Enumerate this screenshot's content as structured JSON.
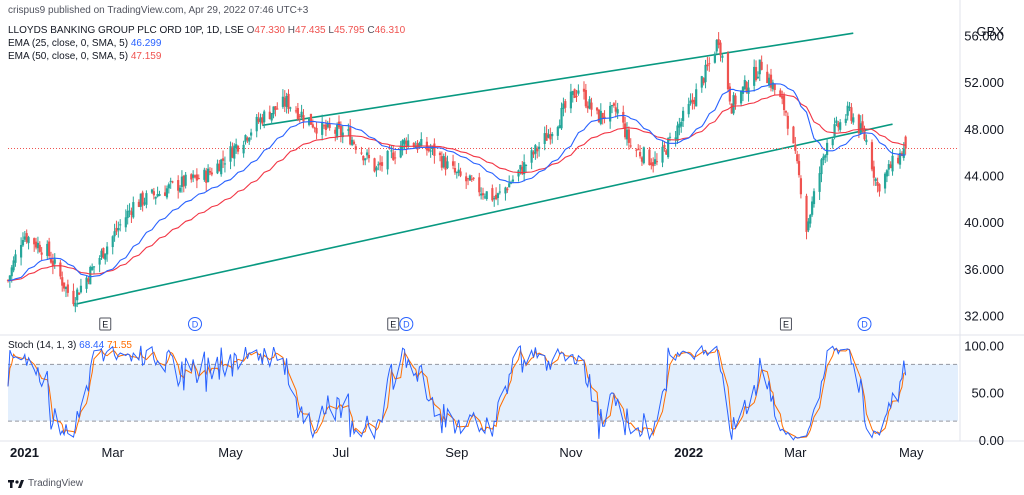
{
  "publisher_line": "crispus9 published on TradingView.com, Apr 29, 2022 07:46 UTC+3",
  "currency": "GBX",
  "legend": {
    "symbol": "LLOYDS BANKING GROUP PLC ORD 10P, 1D, LSE",
    "ohlc": {
      "O": "47.330",
      "H": "47.435",
      "L": "45.795",
      "C": "46.310"
    },
    "ema25": {
      "label": "EMA (25, close, 0, SMA, 5)",
      "value": "46.299"
    },
    "ema50": {
      "label": "EMA (50, close, 0, SMA, 5)",
      "value": "47.159"
    },
    "stoch": {
      "label": "Stoch (14, 1, 3)",
      "k": "68.44",
      "d": "71.55"
    }
  },
  "brand": "TradingView",
  "colors": {
    "up": "#26a69a",
    "down": "#ef5350",
    "ema25": "#2962ff",
    "ema50": "#f23645",
    "trend": "#089981",
    "stoch_k": "#2962ff",
    "stoch_d": "#ff6d00",
    "band": "#e3effd"
  },
  "chart_data": [
    {
      "type": "candlestick",
      "price_range": [
        30.5,
        57.5
      ],
      "y_ticks": [
        "56.000",
        "52.000",
        "48.000",
        "44.000",
        "40.000",
        "36.000",
        "32.000"
      ],
      "x_ticks": [
        "2021",
        "Mar",
        "May",
        "Jul",
        "Sep",
        "Nov",
        "2022",
        "Mar",
        "May"
      ],
      "last_price_line": 46.31,
      "anchors": [
        {
          "date": "2021-01-04",
          "close": 35.0
        },
        {
          "date": "2021-01-12",
          "close": 39.0
        },
        {
          "date": "2021-01-25",
          "close": 37.5
        },
        {
          "date": "2021-02-05",
          "close": 34.0
        },
        {
          "date": "2021-02-08",
          "close": 33.5
        },
        {
          "date": "2021-02-22",
          "close": 37.0
        },
        {
          "date": "2021-03-12",
          "close": 41.5
        },
        {
          "date": "2021-04-01",
          "close": 43.0
        },
        {
          "date": "2021-04-20",
          "close": 44.0
        },
        {
          "date": "2021-04-30",
          "close": 45.5
        },
        {
          "date": "2021-05-20",
          "close": 49.0
        },
        {
          "date": "2021-06-02",
          "close": 50.3
        },
        {
          "date": "2021-06-20",
          "close": 48.0
        },
        {
          "date": "2021-07-05",
          "close": 47.5
        },
        {
          "date": "2021-07-20",
          "close": 44.5
        },
        {
          "date": "2021-08-05",
          "close": 47.0
        },
        {
          "date": "2021-08-20",
          "close": 46.0
        },
        {
          "date": "2021-09-01",
          "close": 44.0
        },
        {
          "date": "2021-09-22",
          "close": 42.0
        },
        {
          "date": "2021-10-08",
          "close": 45.0
        },
        {
          "date": "2021-10-22",
          "close": 48.0
        },
        {
          "date": "2021-11-05",
          "close": 51.5
        },
        {
          "date": "2021-11-15",
          "close": 49.0
        },
        {
          "date": "2021-11-26",
          "close": 49.5
        },
        {
          "date": "2021-12-03",
          "close": 46.5
        },
        {
          "date": "2021-12-17",
          "close": 45.0
        },
        {
          "date": "2022-01-04",
          "close": 50.0
        },
        {
          "date": "2022-01-14",
          "close": 53.5
        },
        {
          "date": "2022-01-19",
          "close": 55.8
        },
        {
          "date": "2022-01-26",
          "close": 50.0
        },
        {
          "date": "2022-02-11",
          "close": 53.5
        },
        {
          "date": "2022-02-24",
          "close": 49.5
        },
        {
          "date": "2022-03-04",
          "close": 43.0
        },
        {
          "date": "2022-03-07",
          "close": 39.5
        },
        {
          "date": "2022-03-18",
          "close": 47.0
        },
        {
          "date": "2022-03-30",
          "close": 49.5
        },
        {
          "date": "2022-04-08",
          "close": 47.0
        },
        {
          "date": "2022-04-14",
          "close": 43.0
        },
        {
          "date": "2022-04-22",
          "close": 45.0
        },
        {
          "date": "2022-04-29",
          "close": 46.31
        }
      ],
      "trendlines": [
        {
          "from": {
            "date": "2021-02-10",
            "price": 33.0
          },
          "to": {
            "date": "2022-04-22",
            "price": 48.4
          }
        },
        {
          "from": {
            "date": "2021-05-20",
            "price": 48.3
          },
          "to": {
            "date": "2022-04-01",
            "price": 56.2
          }
        }
      ],
      "events": [
        {
          "date": "2021-02-25",
          "label": "E"
        },
        {
          "date": "2021-04-14",
          "label": "D"
        },
        {
          "date": "2021-07-29",
          "label": "E"
        },
        {
          "date": "2021-08-05",
          "label": "D"
        },
        {
          "date": "2022-02-24",
          "label": "E"
        },
        {
          "date": "2022-04-07",
          "label": "D"
        }
      ]
    },
    {
      "type": "line",
      "name": "Stoch (14, 1, 3)",
      "range": [
        0,
        110
      ],
      "y_ticks": [
        "100.00",
        "50.00",
        "0.00"
      ],
      "band": [
        20,
        80
      ],
      "last_k": 68.44,
      "last_d": 71.55
    }
  ]
}
